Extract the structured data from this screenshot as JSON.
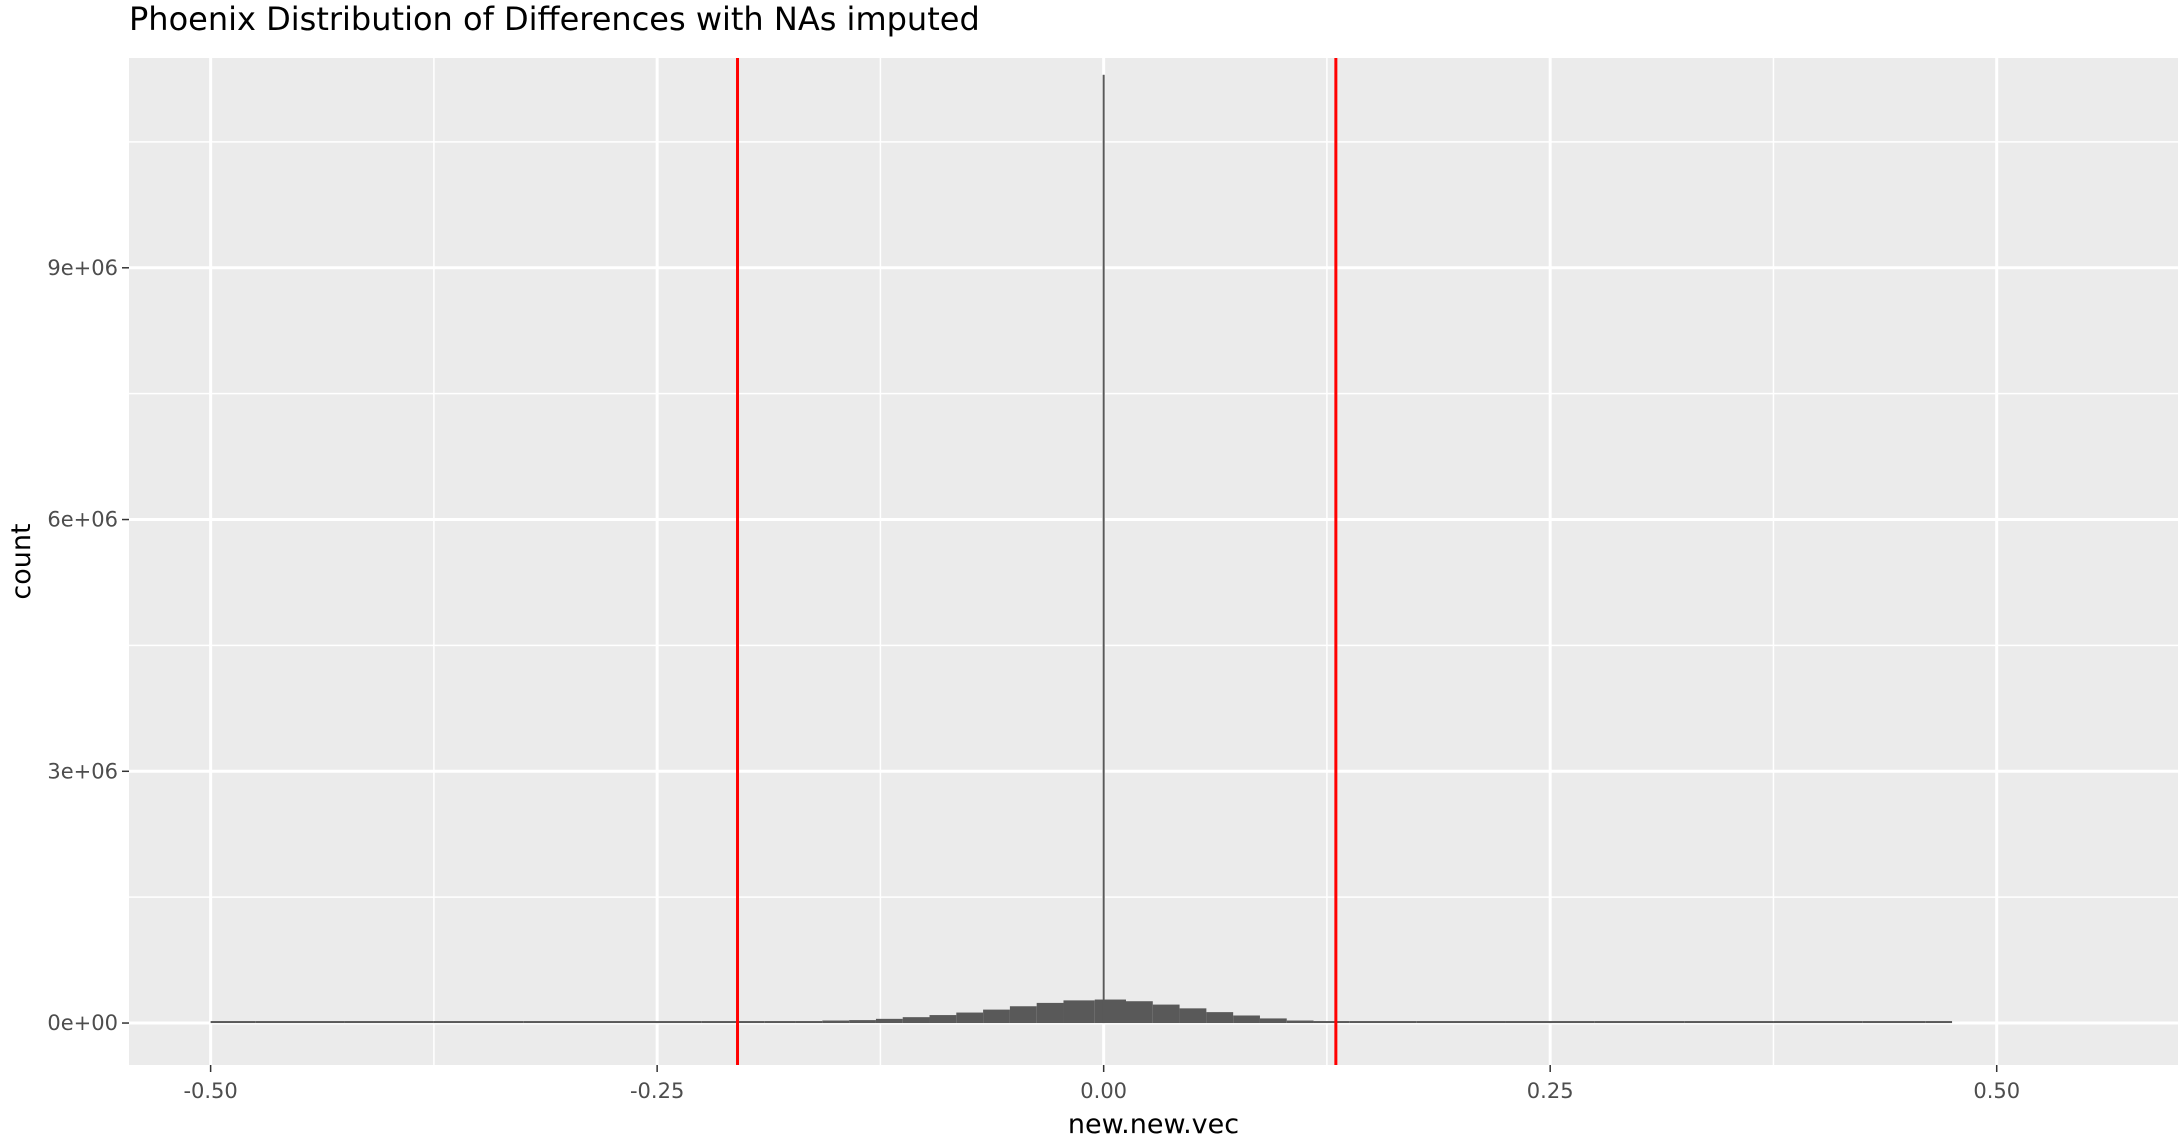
{
  "chart_data": {
    "type": "bar",
    "title": "Phoenix Distribution of Differences with NAs imputed",
    "xlabel": "new.new.vec",
    "ylabel": "count",
    "xlim": [
      -0.5457,
      0.6015
    ],
    "ylim": [
      -500000,
      11500000
    ],
    "x_ticks": [
      -0.5,
      -0.25,
      0.0,
      0.25,
      0.5
    ],
    "x_tick_labels": [
      "-0.50",
      "-0.25",
      "0.00",
      "0.25",
      "0.50"
    ],
    "y_ticks": [
      0,
      3000000,
      6000000,
      9000000
    ],
    "y_tick_labels": [
      "0e+00",
      "3e+06",
      "6e+06",
      "9e+06"
    ],
    "grid": true,
    "series": [
      {
        "name": "histogram",
        "bin_width": 0.002,
        "spike": {
          "x": 0.0,
          "count": 11300000
        },
        "bins": [
          {
            "x": -0.5,
            "count": 5000
          },
          {
            "x": -0.45,
            "count": 5000
          },
          {
            "x": -0.4,
            "count": 5000
          },
          {
            "x": -0.35,
            "count": 5000
          },
          {
            "x": -0.3,
            "count": 5000
          },
          {
            "x": -0.25,
            "count": 5000
          },
          {
            "x": -0.2,
            "count": 10000
          },
          {
            "x": -0.18,
            "count": 10000
          },
          {
            "x": -0.165,
            "count": 20000
          },
          {
            "x": -0.15,
            "count": 30000
          },
          {
            "x": -0.135,
            "count": 35000
          },
          {
            "x": -0.12,
            "count": 50000
          },
          {
            "x": -0.105,
            "count": 70000
          },
          {
            "x": -0.09,
            "count": 95000
          },
          {
            "x": -0.075,
            "count": 125000
          },
          {
            "x": -0.06,
            "count": 160000
          },
          {
            "x": -0.045,
            "count": 200000
          },
          {
            "x": -0.03,
            "count": 240000
          },
          {
            "x": -0.015,
            "count": 270000
          },
          {
            "x": 0.005,
            "count": 280000
          },
          {
            "x": 0.02,
            "count": 260000
          },
          {
            "x": 0.035,
            "count": 220000
          },
          {
            "x": 0.05,
            "count": 175000
          },
          {
            "x": 0.065,
            "count": 130000
          },
          {
            "x": 0.08,
            "count": 90000
          },
          {
            "x": 0.095,
            "count": 55000
          },
          {
            "x": 0.11,
            "count": 30000
          },
          {
            "x": 0.125,
            "count": 20000
          },
          {
            "x": 0.15,
            "count": 10000
          },
          {
            "x": 0.2,
            "count": 5000
          },
          {
            "x": 0.25,
            "count": 5000
          },
          {
            "x": 0.3,
            "count": 5000
          },
          {
            "x": 0.35,
            "count": 5000
          },
          {
            "x": 0.4,
            "count": 5000
          },
          {
            "x": 0.45,
            "count": 5000
          },
          {
            "x": 0.47,
            "count": 3000
          }
        ]
      }
    ],
    "vlines": [
      {
        "x": -0.205,
        "color": "#ff0000"
      },
      {
        "x": 0.13,
        "color": "#ff0000"
      }
    ],
    "colors": {
      "panel_bg": "#ebebeb",
      "grid_major": "#ffffff",
      "bar_fill": "#595959",
      "tick_text": "#4d4d4d"
    }
  }
}
